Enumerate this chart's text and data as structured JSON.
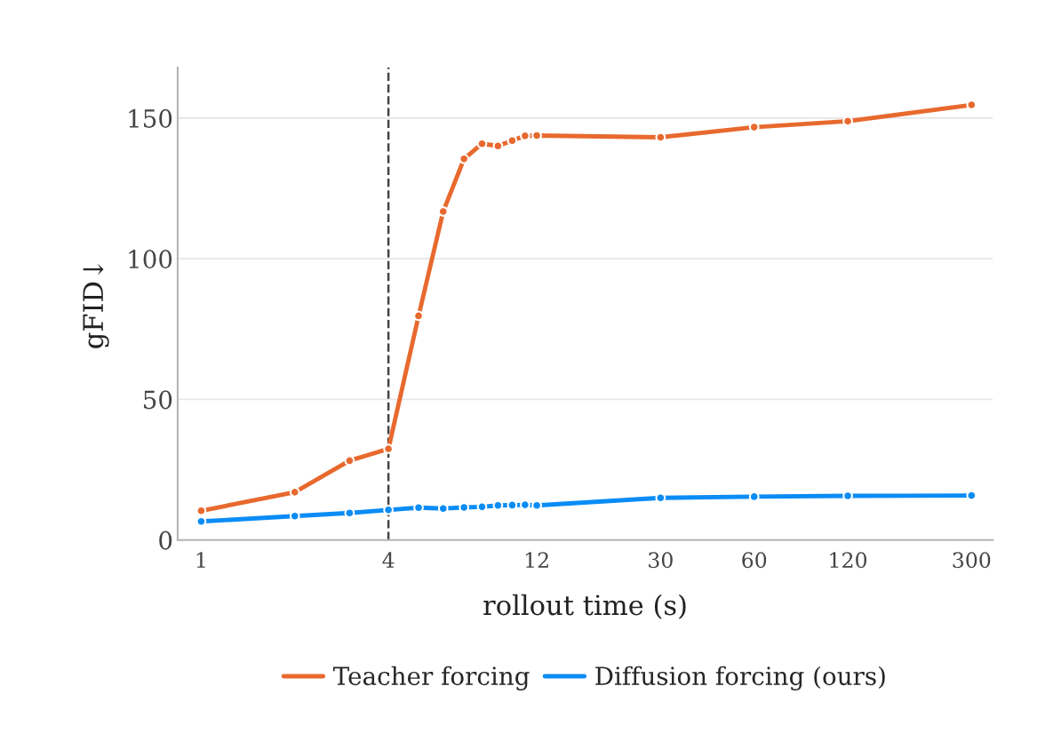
{
  "chart_data": {
    "type": "line",
    "xlabel": "rollout time (s)",
    "ylabel": "gFID↓",
    "log": "x",
    "xlim": [
      0.84,
      351
    ],
    "xticks": [
      1,
      4,
      12,
      30,
      60,
      120,
      300
    ],
    "ylim": [
      0,
      168
    ],
    "yticks": [
      0,
      50,
      100,
      150
    ],
    "grid": "y",
    "legend": "bottom",
    "marker": "circle",
    "line_style": "solid",
    "ref_lines": [
      {
        "axis": "x",
        "value": 4,
        "color": "#444444",
        "line_style": "dashed"
      }
    ],
    "series": [
      {
        "name": "Teacher forcing",
        "color": "#e8692e",
        "x": [
          1,
          2,
          3,
          4,
          5,
          6,
          7,
          8,
          9,
          10,
          11,
          12,
          30,
          60,
          120,
          300
        ],
        "values": [
          10.4,
          17.0,
          28.2,
          32.4,
          79.7,
          116.8,
          135.5,
          140.9,
          140.1,
          142.0,
          143.7,
          143.8,
          143.2,
          146.8,
          148.9,
          154.7
        ]
      },
      {
        "name": "Diffusion forcing (ours)",
        "color": "#0a8cf5",
        "x": [
          1,
          2,
          3,
          4,
          5,
          6,
          7,
          8,
          9,
          10,
          11,
          12,
          30,
          60,
          120,
          300
        ],
        "values": [
          6.6,
          8.5,
          9.6,
          10.7,
          11.5,
          11.2,
          11.6,
          11.8,
          12.3,
          12.4,
          12.5,
          12.3,
          15.0,
          15.4,
          15.7,
          15.8
        ]
      }
    ]
  }
}
